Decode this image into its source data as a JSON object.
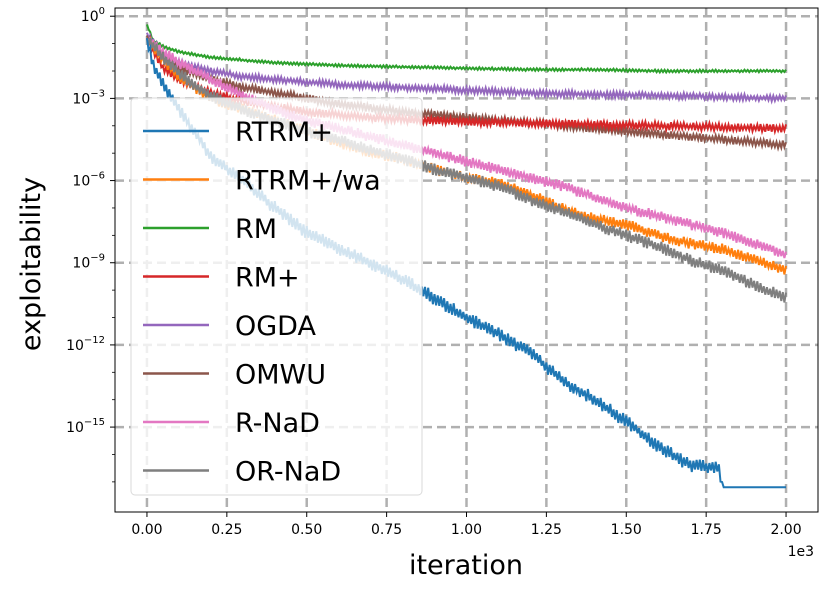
{
  "chart_data": {
    "type": "line",
    "title": "",
    "xlabel": "iteration",
    "ylabel": "exploitability",
    "x_offset_label": "1e3",
    "y_scale": "log",
    "xlim": [
      -0.1,
      2.1
    ],
    "ylim_log10": [
      -18.1,
      0.3
    ],
    "x_ticks": [
      0.0,
      0.25,
      0.5,
      0.75,
      1.0,
      1.25,
      1.5,
      1.75,
      2.0
    ],
    "x_tick_labels": [
      "0.00",
      "0.25",
      "0.50",
      "0.75",
      "1.00",
      "1.25",
      "1.50",
      "1.75",
      "2.00"
    ],
    "y_ticks_log10": [
      0,
      -3,
      -6,
      -9,
      -12,
      -15
    ],
    "y_tick_bases": [
      "10",
      "10",
      "10",
      "10",
      "10",
      "10"
    ],
    "y_tick_exponents": [
      "0",
      "−3",
      "−6",
      "−9",
      "−12",
      "−15"
    ],
    "grid": true,
    "legend_position": "left",
    "series": [
      {
        "name": "RTRM+",
        "color": "#1f77b4",
        "x": [
          0,
          0.02,
          0.05,
          0.1,
          0.2,
          0.3,
          0.4,
          0.5,
          0.6,
          0.7,
          0.8,
          0.9,
          1.0,
          1.1,
          1.2,
          1.3,
          1.4,
          1.5,
          1.6,
          1.7,
          1.79,
          1.8,
          1.85,
          2.0
        ],
        "log10_y": [
          -0.8,
          -1.8,
          -2.5,
          -3.4,
          -5.1,
          -6.0,
          -7.0,
          -7.9,
          -8.5,
          -9.0,
          -9.6,
          -10.3,
          -11.0,
          -11.6,
          -12.3,
          -13.3,
          -14.0,
          -14.8,
          -15.7,
          -16.4,
          -16.5,
          -17.2,
          -17.2,
          -17.2
        ],
        "noise": 0.25
      },
      {
        "name": "RTRM+/wa",
        "color": "#ff7f0e",
        "x": [
          0,
          0.05,
          0.1,
          0.2,
          0.3,
          0.4,
          0.5,
          0.6,
          0.7,
          0.8,
          0.9,
          1.0,
          1.1,
          1.2,
          1.3,
          1.4,
          1.5,
          1.6,
          1.7,
          1.8,
          1.9,
          2.0
        ],
        "log10_y": [
          -0.8,
          -1.6,
          -2.2,
          -3.0,
          -3.4,
          -3.8,
          -4.2,
          -4.6,
          -5.0,
          -5.2,
          -5.6,
          -5.9,
          -6.1,
          -6.5,
          -7.0,
          -7.4,
          -7.6,
          -8.0,
          -8.3,
          -8.5,
          -8.9,
          -9.3
        ],
        "noise": 0.2
      },
      {
        "name": "RM",
        "color": "#2ca02c",
        "x": [
          0,
          0.02,
          0.05,
          0.1,
          0.2,
          0.3,
          0.4,
          0.6,
          0.8,
          1.0,
          1.2,
          1.4,
          1.6,
          1.8,
          2.0
        ],
        "log10_y": [
          -0.3,
          -0.9,
          -1.1,
          -1.3,
          -1.5,
          -1.6,
          -1.7,
          -1.8,
          -1.85,
          -1.9,
          -1.95,
          -1.95,
          -2.0,
          -2.0,
          -2.0
        ],
        "noise": 0.05
      },
      {
        "name": "RM+",
        "color": "#d62728",
        "x": [
          0,
          0.05,
          0.1,
          0.2,
          0.3,
          0.4,
          0.5,
          0.6,
          0.7,
          0.8,
          0.9,
          1.0,
          1.2,
          1.4,
          1.6,
          1.8,
          2.0
        ],
        "log10_y": [
          -0.8,
          -1.9,
          -2.3,
          -2.8,
          -3.1,
          -3.3,
          -3.5,
          -3.6,
          -3.7,
          -3.75,
          -3.8,
          -3.85,
          -3.9,
          -3.95,
          -4.0,
          -4.05,
          -4.1
        ],
        "noise": 0.15
      },
      {
        "name": "OGDA",
        "color": "#9467bd",
        "x": [
          0,
          0.05,
          0.1,
          0.2,
          0.3,
          0.4,
          0.5,
          0.6,
          0.8,
          1.0,
          1.2,
          1.4,
          1.6,
          1.8,
          2.0
        ],
        "log10_y": [
          -0.6,
          -1.4,
          -1.7,
          -2.0,
          -2.2,
          -2.3,
          -2.4,
          -2.5,
          -2.6,
          -2.7,
          -2.8,
          -2.85,
          -2.9,
          -2.95,
          -3.0
        ],
        "noise": 0.12
      },
      {
        "name": "OMWU",
        "color": "#8c564b",
        "x": [
          0,
          0.05,
          0.1,
          0.2,
          0.3,
          0.4,
          0.5,
          0.6,
          0.8,
          1.0,
          1.2,
          1.4,
          1.6,
          1.8,
          2.0
        ],
        "log10_y": [
          -0.7,
          -1.5,
          -1.9,
          -2.3,
          -2.6,
          -2.8,
          -3.0,
          -3.2,
          -3.5,
          -3.7,
          -3.9,
          -4.1,
          -4.3,
          -4.5,
          -4.7
        ],
        "noise": 0.15
      },
      {
        "name": "R-NaD",
        "color": "#e377c2",
        "x": [
          0,
          0.05,
          0.1,
          0.2,
          0.3,
          0.4,
          0.5,
          0.6,
          0.7,
          0.8,
          0.9,
          1.0,
          1.1,
          1.2,
          1.3,
          1.4,
          1.5,
          1.6,
          1.7,
          1.8,
          1.9,
          2.0
        ],
        "log10_y": [
          -0.8,
          -1.3,
          -1.7,
          -2.3,
          -2.9,
          -3.4,
          -3.8,
          -4.1,
          -4.4,
          -4.7,
          -5.0,
          -5.3,
          -5.6,
          -5.9,
          -6.2,
          -6.6,
          -7.0,
          -7.3,
          -7.6,
          -7.9,
          -8.3,
          -8.7
        ],
        "noise": 0.2
      },
      {
        "name": "OR-NaD",
        "color": "#7f7f7f",
        "x": [
          0,
          0.05,
          0.1,
          0.2,
          0.3,
          0.4,
          0.5,
          0.6,
          0.7,
          0.8,
          0.9,
          1.0,
          1.1,
          1.2,
          1.3,
          1.4,
          1.5,
          1.6,
          1.7,
          1.8,
          1.9,
          2.0
        ],
        "log10_y": [
          -0.8,
          -1.5,
          -2.1,
          -2.9,
          -3.4,
          -3.8,
          -4.2,
          -4.5,
          -4.9,
          -5.2,
          -5.6,
          -5.9,
          -6.2,
          -6.7,
          -7.1,
          -7.6,
          -8.0,
          -8.4,
          -8.9,
          -9.3,
          -9.8,
          -10.3
        ],
        "noise": 0.22
      }
    ]
  }
}
